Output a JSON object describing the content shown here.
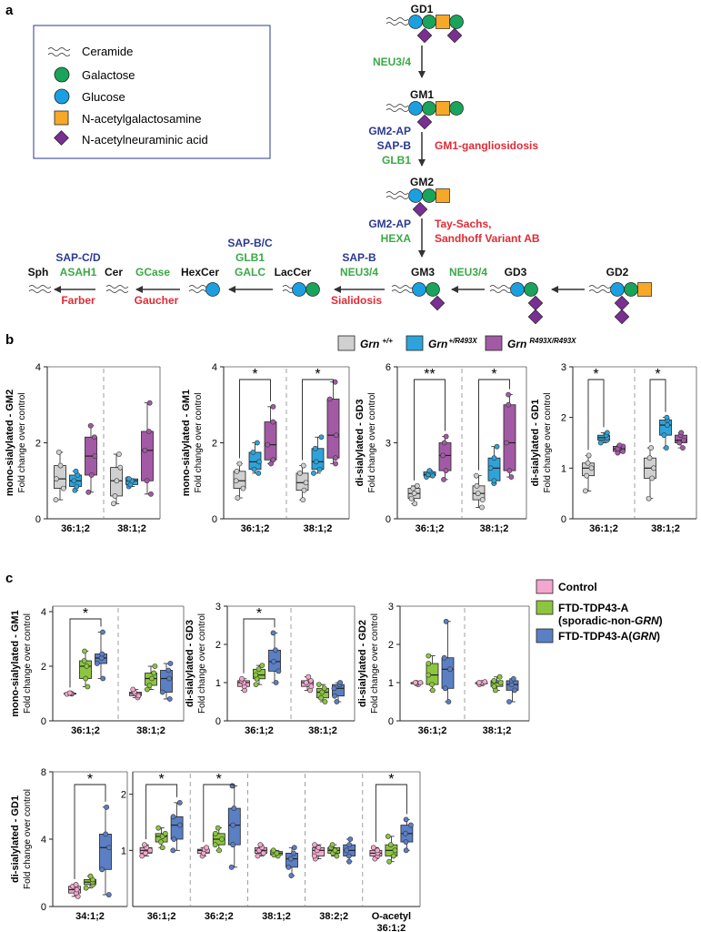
{
  "panel_labels": {
    "a": "a",
    "b": "b",
    "c": "c"
  },
  "legend_a": {
    "items": [
      {
        "label": "Ceramide",
        "icon": "ceramide-icon"
      },
      {
        "label": "Galactose",
        "icon": "galactose-icon",
        "color": "#1aa35a"
      },
      {
        "label": "Glucose",
        "icon": "glucose-icon",
        "color": "#1aa0e0"
      },
      {
        "label": "N-acetylgalactosamine",
        "icon": "galnac-icon",
        "color": "#f7a828"
      },
      {
        "label": "N-acetylneuraminic acid",
        "icon": "neuac-icon",
        "color": "#7a2f93"
      }
    ]
  },
  "pathway": {
    "nodes": {
      "gd1": "GD1",
      "gm1": "GM1",
      "gm2": "GM2",
      "gm3": "GM3",
      "gd3": "GD3",
      "gd2": "GD2",
      "laccer": "LacCer",
      "hexcer": "HexCer",
      "cer": "Cer",
      "sph": "Sph"
    },
    "enzymes": {
      "neu34_top": "NEU3/4",
      "gm2ap_1": "GM2-AP",
      "sapb_1": "SAP-B",
      "glb1_1": "GLB1",
      "gm2ap_2": "GM2-AP",
      "hexa": "HEXA",
      "neu34_gd3": "NEU3/4",
      "sapb_2": "SAP-B",
      "neu34_lac": "NEU3/4",
      "sapbc": "SAP-B/C",
      "glb1_2": "GLB1",
      "galc": "GALC",
      "gcase": "GCase",
      "sapcd": "SAP-C/D",
      "asah1": "ASAH1"
    },
    "diseases": {
      "gm1_gangliosidosis": "GM1-gangliosidosis",
      "tay_sachs_1": "Tay-Sachs,",
      "tay_sachs_2": "Sandhoff Variant AB",
      "sialidosis": "Sialidosis",
      "gaucher": "Gaucher",
      "farber": "Farber"
    },
    "colors": {
      "enzyme_blue": "#2b3990",
      "enzyme_green": "#3aa946",
      "disease_red": "#e02b35"
    }
  },
  "legend_b": {
    "items": [
      {
        "genotype": "Grn",
        "sup": "+/+",
        "color": "#d0d0d0"
      },
      {
        "genotype": "Grn",
        "sup": "+/R493X",
        "color": "#2ea3da"
      },
      {
        "genotype": "Grn",
        "sup": "R493X/R493X",
        "color": "#a35aa5"
      }
    ]
  },
  "legend_c": {
    "items": [
      {
        "label": "Control",
        "color": "#f3a7cd"
      },
      {
        "label": "FTD-TDP43-A",
        "label2_pre": "(sporadic-non-",
        "label2_it": "GRN",
        "label2_post": ")",
        "color": "#8cc63f"
      },
      {
        "label_pre": "FTD-TDP43-A(",
        "label_it": "GRN",
        "label_post": ")",
        "color": "#5b7fc4"
      }
    ]
  },
  "yaxis_sub": "Fold change over control",
  "chart_data": [
    {
      "id": "b_gm2",
      "type": "box",
      "panel": "b",
      "ylabel": "mono-sialylated - GM2",
      "ylim": [
        0,
        4
      ],
      "yticks": [
        0,
        2,
        4
      ],
      "categories": [
        "36:1;2",
        "38:1;2"
      ],
      "series": [
        {
          "name": "Grn +/+",
          "color": "#d0d0d0",
          "boxes": [
            [
              0.5,
              0.8,
              1.05,
              1.4,
              1.75
            ],
            [
              0.4,
              0.6,
              1.0,
              1.35,
              1.7
            ]
          ]
        },
        {
          "name": "Grn +/R493X",
          "color": "#2ea3da",
          "boxes": [
            [
              0.75,
              0.85,
              1.0,
              1.15,
              1.25
            ],
            [
              0.85,
              0.9,
              1.0,
              1.05,
              1.05
            ]
          ]
        },
        {
          "name": "Grn R493X/R493X",
          "color": "#a35aa5",
          "boxes": [
            [
              0.7,
              1.15,
              1.65,
              2.15,
              2.45
            ],
            [
              0.65,
              1.0,
              1.8,
              2.3,
              3.05
            ]
          ]
        }
      ],
      "significance": []
    },
    {
      "id": "b_gm1",
      "type": "box",
      "panel": "b",
      "ylabel": "mono-sialylated - GM1",
      "ylim": [
        0,
        4
      ],
      "yticks": [
        0,
        2,
        4
      ],
      "categories": [
        "36:1;2",
        "38:1;2"
      ],
      "series": [
        {
          "name": "Grn +/+",
          "color": "#d0d0d0",
          "boxes": [
            [
              0.55,
              0.8,
              1.0,
              1.25,
              1.45
            ],
            [
              0.5,
              0.75,
              0.95,
              1.2,
              1.4
            ]
          ]
        },
        {
          "name": "Grn +/R493X",
          "color": "#2ea3da",
          "boxes": [
            [
              1.2,
              1.3,
              1.5,
              1.75,
              2.0
            ],
            [
              1.2,
              1.3,
              1.5,
              1.85,
              2.15
            ]
          ]
        },
        {
          "name": "Grn R493X/R493X",
          "color": "#a35aa5",
          "boxes": [
            [
              1.45,
              1.55,
              1.95,
              2.55,
              2.95
            ],
            [
              1.45,
              1.6,
              2.2,
              3.15,
              3.6
            ]
          ]
        }
      ],
      "significance": [
        {
          "group": 0,
          "from": 0,
          "to": 2,
          "label": "*"
        },
        {
          "group": 1,
          "from": 0,
          "to": 2,
          "label": "*"
        }
      ]
    },
    {
      "id": "b_gd3",
      "type": "box",
      "panel": "b",
      "ylabel": "di-sialylated - GD3",
      "ylim": [
        0,
        6
      ],
      "yticks": [
        0,
        3,
        6
      ],
      "categories": [
        "36:1;2",
        "38:1;2"
      ],
      "series": [
        {
          "name": "Grn +/+",
          "color": "#d0d0d0",
          "boxes": [
            [
              0.6,
              0.8,
              1.0,
              1.2,
              1.3
            ],
            [
              0.45,
              0.75,
              1.0,
              1.3,
              1.7
            ]
          ]
        },
        {
          "name": "Grn +/R493X",
          "color": "#2ea3da",
          "boxes": [
            [
              1.65,
              1.7,
              1.75,
              1.85,
              1.9
            ],
            [
              1.4,
              1.5,
              2.0,
              2.4,
              2.85
            ]
          ]
        },
        {
          "name": "Grn R493X/R493X",
          "color": "#a35aa5",
          "boxes": [
            [
              1.55,
              1.9,
              2.5,
              3.0,
              3.25
            ],
            [
              1.65,
              1.9,
              3.0,
              4.5,
              4.9
            ]
          ]
        }
      ],
      "significance": [
        {
          "group": 0,
          "from": 0,
          "to": 2,
          "label": "**"
        },
        {
          "group": 1,
          "from": 0,
          "to": 2,
          "label": "*"
        }
      ]
    },
    {
      "id": "b_gd1",
      "type": "box",
      "panel": "b",
      "ylabel": "di-sialylated - GD1",
      "ylim": [
        0,
        3
      ],
      "yticks": [
        0,
        1,
        2,
        3
      ],
      "categories": [
        "36:1;2",
        "38:1;2"
      ],
      "series": [
        {
          "name": "Grn +/+",
          "color": "#d0d0d0",
          "boxes": [
            [
              0.55,
              0.85,
              1.0,
              1.1,
              1.25
            ],
            [
              0.4,
              0.8,
              1.0,
              1.2,
              1.4
            ]
          ]
        },
        {
          "name": "Grn +/R493X",
          "color": "#2ea3da",
          "boxes": [
            [
              1.5,
              1.55,
              1.6,
              1.65,
              1.7
            ],
            [
              1.4,
              1.65,
              1.85,
              1.95,
              2.0
            ]
          ]
        },
        {
          "name": "Grn R493X/R493X",
          "color": "#a35aa5",
          "boxes": [
            [
              1.3,
              1.33,
              1.38,
              1.43,
              1.45
            ],
            [
              1.4,
              1.5,
              1.55,
              1.65,
              1.7
            ]
          ]
        }
      ],
      "significance": [
        {
          "group": 0,
          "from": 0,
          "to": 1,
          "label": "*"
        },
        {
          "group": 1,
          "from": 0,
          "to": 1,
          "label": "*"
        }
      ]
    },
    {
      "id": "c_gm1",
      "type": "box",
      "panel": "c",
      "ylabel": "mono-sialylated - GM1",
      "ylim": [
        0,
        4.2
      ],
      "yticks": [
        0,
        2,
        4
      ],
      "categories": [
        "36:1;2",
        "38:1;2"
      ],
      "series": [
        {
          "name": "Control",
          "color": "#f3a7cd",
          "boxes": [
            [
              0.98,
              0.99,
              1.0,
              1.01,
              1.02
            ],
            [
              0.85,
              0.92,
              1.0,
              1.05,
              1.15
            ]
          ]
        },
        {
          "name": "FTD-TDP43-A (sporadic-non-GRN)",
          "color": "#8cc63f",
          "boxes": [
            [
              1.25,
              1.55,
              2.0,
              2.2,
              2.55
            ],
            [
              1.15,
              1.3,
              1.55,
              1.75,
              2.0
            ]
          ]
        },
        {
          "name": "FTD-TDP43-A(GRN)",
          "color": "#5b7fc4",
          "boxes": [
            [
              1.55,
              2.1,
              2.3,
              2.45,
              3.25
            ],
            [
              0.8,
              1.05,
              1.55,
              1.85,
              2.1
            ]
          ]
        }
      ],
      "significance": [
        {
          "group": 0,
          "from": 0,
          "to": 2,
          "label": "*"
        }
      ]
    },
    {
      "id": "c_gd3",
      "type": "box",
      "panel": "c",
      "ylabel": "di-sialylated - GD3",
      "ylim": [
        0,
        3
      ],
      "yticks": [
        0,
        1,
        2,
        3
      ],
      "categories": [
        "36:1;2",
        "38:1;2"
      ],
      "series": [
        {
          "name": "Control",
          "color": "#f3a7cd",
          "boxes": [
            [
              0.8,
              0.9,
              1.0,
              1.05,
              1.1
            ],
            [
              0.8,
              0.9,
              1.0,
              1.05,
              1.15
            ]
          ]
        },
        {
          "name": "FTD-TDP43-A (sporadic-non-GRN)",
          "color": "#8cc63f",
          "boxes": [
            [
              0.95,
              1.1,
              1.2,
              1.35,
              1.45
            ],
            [
              0.5,
              0.6,
              0.75,
              0.85,
              0.95
            ]
          ]
        },
        {
          "name": "FTD-TDP43-A(GRN)",
          "color": "#5b7fc4",
          "boxes": [
            [
              1.0,
              1.3,
              1.55,
              1.85,
              2.3
            ],
            [
              0.5,
              0.65,
              0.85,
              0.95,
              1.0
            ]
          ]
        }
      ],
      "significance": [
        {
          "group": 0,
          "from": 0,
          "to": 2,
          "label": "*"
        }
      ]
    },
    {
      "id": "c_gd2",
      "type": "box",
      "panel": "c",
      "ylabel": "di-sialylated - GD2",
      "ylim": [
        0,
        3
      ],
      "yticks": [
        0,
        1,
        2,
        3
      ],
      "categories": [
        "36:1;2",
        "38:1;2"
      ],
      "series": [
        {
          "name": "Control",
          "color": "#f3a7cd",
          "boxes": [
            [
              0.95,
              0.97,
              1.0,
              1.0,
              1.0
            ],
            [
              0.95,
              0.97,
              1.0,
              1.0,
              1.02
            ]
          ]
        },
        {
          "name": "FTD-TDP43-A (sporadic-non-GRN)",
          "color": "#8cc63f",
          "boxes": [
            [
              0.8,
              0.95,
              1.2,
              1.5,
              1.7
            ],
            [
              0.8,
              0.9,
              1.0,
              1.05,
              1.15
            ]
          ]
        },
        {
          "name": "FTD-TDP43-A(GRN)",
          "color": "#5b7fc4",
          "boxes": [
            [
              0.5,
              0.85,
              1.35,
              1.65,
              2.6
            ],
            [
              0.5,
              0.8,
              0.95,
              1.05,
              1.1
            ]
          ]
        }
      ],
      "significance": []
    },
    {
      "id": "c_gd1_a",
      "type": "box",
      "panel": "c",
      "ylabel": "di-sialylated - GD1",
      "ylim": [
        0,
        8
      ],
      "yticks": [
        0,
        4,
        8
      ],
      "categories": [
        "34:1;2"
      ],
      "series": [
        {
          "name": "Control",
          "color": "#f3a7cd",
          "boxes": [
            [
              0.6,
              0.8,
              1.0,
              1.2,
              1.3
            ]
          ]
        },
        {
          "name": "FTD-TDP43-A (sporadic-non-GRN)",
          "color": "#8cc63f",
          "boxes": [
            [
              1.1,
              1.3,
              1.45,
              1.6,
              1.8
            ]
          ]
        },
        {
          "name": "FTD-TDP43-A(GRN)",
          "color": "#5b7fc4",
          "boxes": [
            [
              0.7,
              2.2,
              3.5,
              4.3,
              5.9
            ]
          ]
        }
      ],
      "significance": [
        {
          "group": 0,
          "from": 0,
          "to": 2,
          "label": "*"
        }
      ]
    },
    {
      "id": "c_gd1_b",
      "type": "box",
      "panel": "c",
      "ylabel": "",
      "ylim": [
        0,
        2.4
      ],
      "yticks": [
        1,
        2
      ],
      "categories": [
        "36:1;2",
        "36:2;2",
        "38:1;2",
        "38:2;2",
        "O-acetyl\n36:1;2"
      ],
      "series": [
        {
          "name": "Control",
          "color": "#f3a7cd",
          "boxes": [
            [
              0.9,
              0.95,
              1.0,
              1.05,
              1.1
            ],
            [
              0.9,
              0.95,
              1.0,
              1.02,
              1.05
            ],
            [
              0.9,
              0.95,
              1.0,
              1.05,
              1.1
            ],
            [
              0.85,
              0.9,
              1.0,
              1.05,
              1.1
            ],
            [
              0.85,
              0.9,
              0.95,
              1.0,
              1.05
            ]
          ]
        },
        {
          "name": "FTD-TDP43-A (sporadic-non-GRN)",
          "color": "#8cc63f",
          "boxes": [
            [
              1.05,
              1.15,
              1.25,
              1.3,
              1.4
            ],
            [
              1.0,
              1.1,
              1.2,
              1.3,
              1.4
            ],
            [
              0.9,
              0.92,
              0.95,
              0.98,
              1.0
            ],
            [
              0.9,
              0.95,
              1.0,
              1.05,
              1.1
            ],
            [
              0.8,
              0.9,
              1.0,
              1.1,
              1.25
            ]
          ]
        },
        {
          "name": "FTD-TDP43-A(GRN)",
          "color": "#5b7fc4",
          "boxes": [
            [
              1.0,
              1.2,
              1.45,
              1.6,
              1.85
            ],
            [
              0.7,
              1.1,
              1.45,
              1.75,
              2.15
            ],
            [
              0.55,
              0.7,
              0.85,
              0.95,
              1.05
            ],
            [
              0.8,
              0.9,
              1.0,
              1.1,
              1.2
            ],
            [
              1.0,
              1.15,
              1.3,
              1.45,
              1.55
            ]
          ]
        }
      ],
      "significance": [
        {
          "group": 0,
          "from": 0,
          "to": 2,
          "label": "*"
        },
        {
          "group": 1,
          "from": 0,
          "to": 2,
          "label": "*"
        },
        {
          "group": 4,
          "from": 0,
          "to": 2,
          "label": "*"
        }
      ]
    }
  ]
}
